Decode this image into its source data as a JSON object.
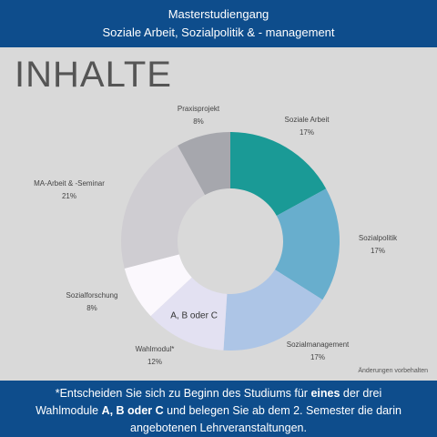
{
  "header": {
    "line1": "Masterstudiengang",
    "line2": "Soziale Arbeit, Sozialpolitik & - management"
  },
  "heading": "INHALTE",
  "note": "Änderungen vorbehalten",
  "footer": {
    "p1": "*Entscheiden Sie sich zu Beginn des Studiums für ",
    "b1": "eines",
    "p2": " der drei",
    "p3": "Wahlmodule ",
    "b2": "A, B oder C",
    "p4": " und belegen Sie ab dem 2. Semester die darin",
    "p5": "angebotenen Lehrveranstaltungen."
  },
  "chart_data": {
    "type": "pie",
    "variant": "donut",
    "slices": [
      {
        "label": "Soziale Arbeit",
        "value_label": "17%",
        "value": 17,
        "color": "#1a9a96"
      },
      {
        "label": "Sozialpolitik",
        "value_label": "17%",
        "value": 17,
        "color": "#68aecd"
      },
      {
        "label": "Sozialmanagement",
        "value_label": "17%",
        "value": 17,
        "color": "#adc5e6"
      },
      {
        "label": "Wahlmodul*",
        "value_label": "12%",
        "value": 12,
        "color": "#e3e1f2",
        "inner_label": "A, B oder C"
      },
      {
        "label": "Sozialforschung",
        "value_label": "8%",
        "value": 8,
        "color": "#fbf8fd"
      },
      {
        "label": "MA-Arbeit & -Seminar",
        "value_label": "21%",
        "value": 21,
        "color": "#cfcdd2"
      },
      {
        "label": "Praxisprojekt",
        "value_label": "8%",
        "value": 8,
        "color": "#a6a7ad"
      }
    ]
  }
}
